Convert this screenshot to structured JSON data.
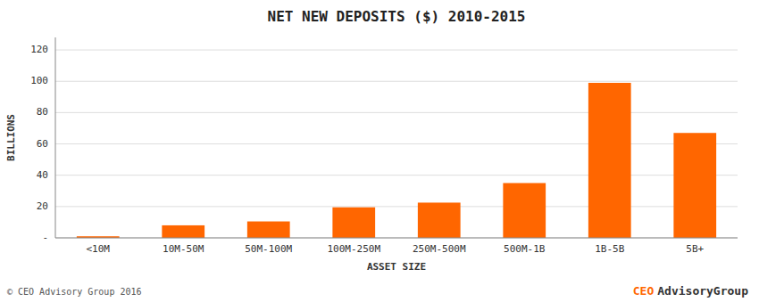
{
  "chart_data": {
    "type": "bar",
    "title": "NET NEW DEPOSITS ($) 2010-2015",
    "categories": [
      "<10M",
      "10M-50M",
      "50M-100M",
      "100M-250M",
      "250M-500M",
      "500M-1B",
      "1B-5B",
      "5B+"
    ],
    "values": [
      1,
      8,
      10.5,
      19.5,
      22.5,
      35,
      99,
      67
    ],
    "color": "#FF6600",
    "xlabel": "ASSET SIZE",
    "ylabel": "BILLIONS",
    "ylim": [
      0,
      128
    ],
    "yticks": [
      {
        "value": 0,
        "label": "-"
      },
      20,
      40,
      60,
      80,
      100,
      120
    ],
    "grid": true,
    "annotations": [
      "© CEO Advisory Group 2016",
      "CEO",
      "AdvisoryGroup"
    ]
  }
}
